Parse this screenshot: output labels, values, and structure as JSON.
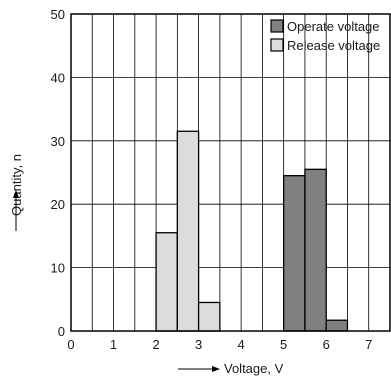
{
  "chart_data": {
    "type": "bar",
    "title": "",
    "xlabel": "Voltage, V",
    "ylabel": "Quantity, n",
    "xlim": [
      0,
      7.5
    ],
    "ylim": [
      0,
      50
    ],
    "xticks": [
      0,
      1,
      2,
      3,
      4,
      5,
      6,
      7
    ],
    "yticks": [
      0,
      10,
      20,
      30,
      40,
      50
    ],
    "grid": true,
    "legend_position": "top-right",
    "bin_width": 0.5,
    "series": [
      {
        "name": "Operate voltage",
        "color": "#808080",
        "bins": [
          {
            "x0": 5.0,
            "x1": 5.5,
            "value": 24.5
          },
          {
            "x0": 5.5,
            "x1": 6.0,
            "value": 25.5
          },
          {
            "x0": 6.0,
            "x1": 6.5,
            "value": 1.7
          }
        ]
      },
      {
        "name": "Release voltage",
        "color": "#dcdcdc",
        "bins": [
          {
            "x0": 2.0,
            "x1": 2.5,
            "value": 15.5
          },
          {
            "x0": 2.5,
            "x1": 3.0,
            "value": 31.5
          },
          {
            "x0": 3.0,
            "x1": 3.5,
            "value": 4.5
          }
        ]
      }
    ]
  }
}
